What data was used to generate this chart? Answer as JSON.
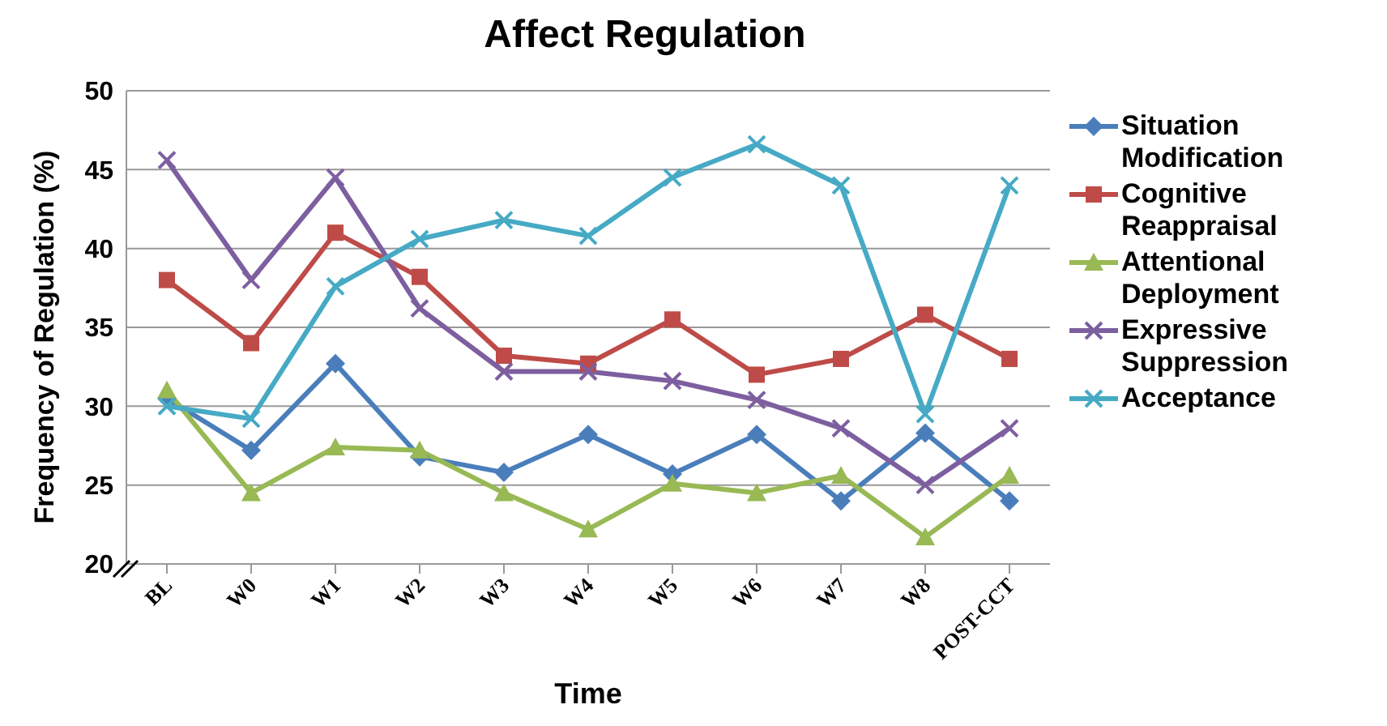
{
  "chart_data": {
    "type": "line",
    "title": "Affect Regulation",
    "xlabel": "Time",
    "ylabel": "Frequency of Regulation (%)",
    "categories": [
      "BL",
      "W0",
      "W1",
      "W2",
      "W3",
      "W4",
      "W5",
      "W6",
      "W7",
      "W8",
      "POST-CCT"
    ],
    "series": [
      {
        "name": "Situation Modification",
        "color": "#4a7ebb",
        "marker": "diamond",
        "values": [
          30.5,
          27.2,
          32.7,
          26.8,
          25.8,
          28.2,
          25.7,
          28.2,
          24,
          28.3,
          24
        ]
      },
      {
        "name": "Cognitive Reappraisal",
        "color": "#be4b48",
        "marker": "square",
        "values": [
          38,
          34,
          41,
          38.2,
          33.2,
          32.7,
          35.5,
          32,
          33,
          35.8,
          33
        ]
      },
      {
        "name": "Attentional Deployment",
        "color": "#98b954",
        "marker": "triangle",
        "values": [
          31,
          24.5,
          27.4,
          27.2,
          24.5,
          22.2,
          25.1,
          24.5,
          25.6,
          21.7,
          25.6
        ]
      },
      {
        "name": "Expressive Suppression",
        "color": "#7d5fa0",
        "marker": "cross",
        "values": [
          45.6,
          38,
          44.5,
          36.2,
          32.2,
          32.2,
          31.6,
          30.4,
          28.6,
          25,
          28.6
        ]
      },
      {
        "name": "Acceptance",
        "color": "#46aac5",
        "marker": "cross",
        "values": [
          30,
          29.2,
          37.6,
          40.6,
          41.8,
          40.8,
          44.5,
          46.6,
          44,
          29.5,
          44
        ]
      }
    ],
    "ylim": [
      20,
      50
    ],
    "yticks": [
      20,
      25,
      30,
      35,
      40,
      45,
      50
    ],
    "grid": "y",
    "legend": "right"
  }
}
